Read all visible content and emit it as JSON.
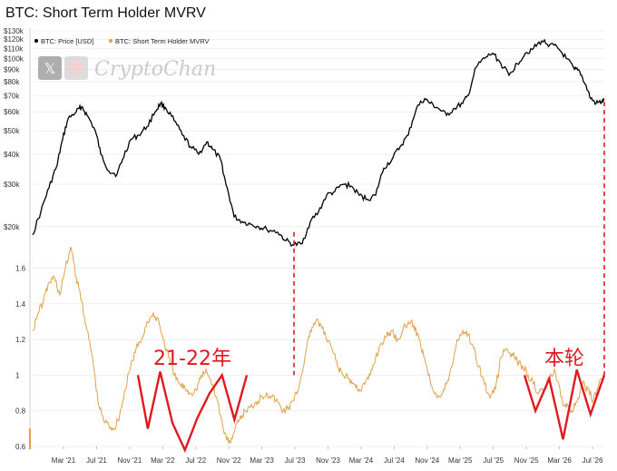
{
  "title": "BTC: Short Term Holder MVRV",
  "watermark": {
    "text": "CryptoChan"
  },
  "colors": {
    "price": "#000000",
    "mvrv": "#e0a04a",
    "annotation": "#e0191e",
    "grid": "#e6e6e6",
    "watermark": "#bdbdbd"
  },
  "chart_data": {
    "type": "line",
    "title": "BTC: Short Term Holder MVRV",
    "x_labels": [
      "Mar '21",
      "Jul '21",
      "Nov '21",
      "Mar '22",
      "Jul '22",
      "Nov '22",
      "Mar '23",
      "Jul '23",
      "Nov '23",
      "Mar '24",
      "Jul '24",
      "Nov '24",
      "Mar '25",
      "Jul '25",
      "Nov '25",
      "Mar '26",
      "Jul '26"
    ],
    "x_range": [
      0,
      21
    ],
    "legend": {
      "placement": "top-left",
      "entries": [
        "BTC: Price [USD]",
        "BTC: Short Term Holder MVRV"
      ]
    },
    "top_panel": {
      "scale": "log",
      "y_ticks": [
        "$20k",
        "$30k",
        "$40k",
        "$50k",
        "$60k",
        "$70k",
        "$80k",
        "$90k",
        "$100k",
        "$110k",
        "$120k",
        "$130k"
      ],
      "y_tick_values": [
        20000,
        30000,
        40000,
        50000,
        60000,
        70000,
        80000,
        90000,
        100000,
        110000,
        120000,
        130000
      ],
      "ylim": [
        18000,
        130000
      ],
      "series": [
        {
          "name": "BTC: Price [USD]",
          "points": [
            [
              0,
              18500
            ],
            [
              0.3,
              23000
            ],
            [
              0.6,
              29000
            ],
            [
              0.9,
              36000
            ],
            [
              1.1,
              46000
            ],
            [
              1.3,
              56000
            ],
            [
              1.6,
              60000
            ],
            [
              1.8,
              63000
            ],
            [
              2.0,
              58000
            ],
            [
              2.3,
              50000
            ],
            [
              2.5,
              40000
            ],
            [
              2.8,
              34000
            ],
            [
              3.1,
              33000
            ],
            [
              3.3,
              38000
            ],
            [
              3.6,
              46000
            ],
            [
              3.9,
              48000
            ],
            [
              4.2,
              52000
            ],
            [
              4.5,
              60000
            ],
            [
              4.7,
              65000
            ],
            [
              4.9,
              62000
            ],
            [
              5.2,
              55000
            ],
            [
              5.5,
              48000
            ],
            [
              5.8,
              43000
            ],
            [
              6.1,
              40000
            ],
            [
              6.4,
              45000
            ],
            [
              6.6,
              42000
            ],
            [
              6.9,
              38000
            ],
            [
              7.1,
              30000
            ],
            [
              7.4,
              22000
            ],
            [
              7.7,
              21000
            ],
            [
              8.0,
              20500
            ],
            [
              8.3,
              20000
            ],
            [
              8.6,
              19500
            ],
            [
              9.0,
              19000
            ],
            [
              9.3,
              17500
            ],
            [
              9.6,
              16800
            ],
            [
              9.9,
              17000
            ],
            [
              10.2,
              21000
            ],
            [
              10.5,
              23000
            ],
            [
              10.8,
              27000
            ],
            [
              11.1,
              28000
            ],
            [
              11.4,
              30000
            ],
            [
              11.7,
              29500
            ],
            [
              12.0,
              27000
            ],
            [
              12.3,
              26000
            ],
            [
              12.6,
              27000
            ],
            [
              12.9,
              35000
            ],
            [
              13.2,
              38000
            ],
            [
              13.5,
              43000
            ],
            [
              13.8,
              48000
            ],
            [
              14.1,
              62000
            ],
            [
              14.4,
              68000
            ],
            [
              14.6,
              65000
            ],
            [
              14.9,
              62000
            ],
            [
              15.2,
              58000
            ],
            [
              15.5,
              62000
            ],
            [
              15.8,
              65000
            ],
            [
              16.0,
              70000
            ],
            [
              16.3,
              92000
            ],
            [
              16.6,
              100000
            ],
            [
              16.9,
              105000
            ],
            [
              17.2,
              95000
            ],
            [
              17.5,
              85000
            ],
            [
              17.8,
              95000
            ],
            [
              18.1,
              105000
            ],
            [
              18.4,
              110000
            ],
            [
              18.7,
              118000
            ],
            [
              19.0,
              114000
            ],
            [
              19.3,
              110000
            ],
            [
              19.6,
              100000
            ],
            [
              19.9,
              90000
            ],
            [
              20.1,
              88000
            ],
            [
              20.3,
              78000
            ],
            [
              20.5,
              68000
            ],
            [
              20.7,
              65000
            ],
            [
              20.9,
              66000
            ],
            [
              21,
              67000
            ]
          ]
        }
      ]
    },
    "bottom_panel": {
      "y_ticks": [
        "0.6",
        "0.8",
        "1",
        "1.2",
        "1.4",
        "1.6"
      ],
      "y_tick_values": [
        0.6,
        0.8,
        1.0,
        1.2,
        1.4,
        1.6
      ],
      "ylim": [
        0.6,
        1.72
      ],
      "series": [
        {
          "name": "BTC: Short Term Holder MVRV",
          "points": [
            [
              0,
              1.25
            ],
            [
              0.2,
              1.35
            ],
            [
              0.4,
              1.42
            ],
            [
              0.6,
              1.52
            ],
            [
              0.8,
              1.55
            ],
            [
              1.0,
              1.45
            ],
            [
              1.2,
              1.6
            ],
            [
              1.4,
              1.72
            ],
            [
              1.6,
              1.55
            ],
            [
              1.8,
              1.42
            ],
            [
              2.0,
              1.25
            ],
            [
              2.2,
              1.1
            ],
            [
              2.4,
              0.85
            ],
            [
              2.6,
              0.75
            ],
            [
              2.8,
              0.72
            ],
            [
              3.0,
              0.7
            ],
            [
              3.2,
              0.78
            ],
            [
              3.4,
              0.92
            ],
            [
              3.6,
              1.05
            ],
            [
              3.8,
              1.15
            ],
            [
              4.0,
              1.2
            ],
            [
              4.2,
              1.3
            ],
            [
              4.4,
              1.33
            ],
            [
              4.6,
              1.32
            ],
            [
              4.8,
              1.2
            ],
            [
              5.0,
              1.1
            ],
            [
              5.2,
              1.0
            ],
            [
              5.4,
              0.95
            ],
            [
              5.6,
              0.93
            ],
            [
              5.8,
              0.9
            ],
            [
              6.0,
              0.92
            ],
            [
              6.2,
              1.0
            ],
            [
              6.4,
              1.02
            ],
            [
              6.6,
              0.95
            ],
            [
              6.8,
              0.85
            ],
            [
              7.0,
              0.7
            ],
            [
              7.2,
              0.62
            ],
            [
              7.4,
              0.68
            ],
            [
              7.6,
              0.75
            ],
            [
              7.8,
              0.8
            ],
            [
              8.0,
              0.82
            ],
            [
              8.2,
              0.85
            ],
            [
              8.4,
              0.88
            ],
            [
              8.6,
              0.9
            ],
            [
              8.8,
              0.88
            ],
            [
              9.0,
              0.85
            ],
            [
              9.2,
              0.8
            ],
            [
              9.4,
              0.82
            ],
            [
              9.6,
              0.86
            ],
            [
              9.8,
              0.95
            ],
            [
              10.0,
              1.1
            ],
            [
              10.2,
              1.25
            ],
            [
              10.4,
              1.3
            ],
            [
              10.6,
              1.28
            ],
            [
              10.8,
              1.2
            ],
            [
              11.0,
              1.15
            ],
            [
              11.2,
              1.05
            ],
            [
              11.4,
              1.0
            ],
            [
              11.6,
              0.98
            ],
            [
              11.8,
              0.95
            ],
            [
              12.0,
              0.92
            ],
            [
              12.2,
              0.95
            ],
            [
              12.4,
              1.0
            ],
            [
              12.6,
              1.1
            ],
            [
              12.8,
              1.18
            ],
            [
              13.0,
              1.22
            ],
            [
              13.2,
              1.25
            ],
            [
              13.4,
              1.2
            ],
            [
              13.6,
              1.25
            ],
            [
              13.8,
              1.3
            ],
            [
              14.0,
              1.28
            ],
            [
              14.2,
              1.2
            ],
            [
              14.4,
              1.1
            ],
            [
              14.6,
              0.97
            ],
            [
              14.8,
              0.9
            ],
            [
              15.0,
              0.88
            ],
            [
              15.2,
              0.95
            ],
            [
              15.4,
              1.05
            ],
            [
              15.6,
              1.2
            ],
            [
              15.8,
              1.25
            ],
            [
              16.0,
              1.23
            ],
            [
              16.2,
              1.15
            ],
            [
              16.4,
              1.05
            ],
            [
              16.6,
              0.95
            ],
            [
              16.8,
              0.87
            ],
            [
              17.0,
              0.92
            ],
            [
              17.2,
              1.1
            ],
            [
              17.4,
              1.15
            ],
            [
              17.6,
              1.12
            ],
            [
              17.8,
              1.08
            ],
            [
              18.0,
              1.05
            ],
            [
              18.2,
              1.0
            ],
            [
              18.4,
              0.95
            ],
            [
              18.6,
              0.9
            ],
            [
              18.8,
              0.92
            ],
            [
              19.0,
              0.98
            ],
            [
              19.2,
              1.02
            ],
            [
              19.4,
              0.88
            ],
            [
              19.6,
              0.82
            ],
            [
              19.8,
              0.8
            ],
            [
              20.0,
              0.85
            ],
            [
              20.2,
              0.95
            ],
            [
              20.4,
              0.92
            ],
            [
              20.6,
              0.86
            ],
            [
              20.8,
              0.95
            ],
            [
              21,
              1.0
            ]
          ]
        }
      ]
    },
    "overlays": [
      {
        "name": "21-22 cycle zigzag",
        "panel": "bottom",
        "points": [
          [
            5.15,
            1.0
          ],
          [
            5.55,
            0.7
          ],
          [
            6.05,
            1.02
          ],
          [
            6.55,
            0.73
          ],
          [
            7.05,
            0.58
          ],
          [
            7.55,
            0.76
          ],
          [
            8.05,
            0.9
          ],
          [
            8.55,
            1.0
          ],
          [
            9.05,
            0.75
          ],
          [
            9.55,
            1.0
          ]
        ]
      },
      {
        "name": "current cycle zigzag",
        "panel": "bottom",
        "points": [
          [
            18.65,
            1.0
          ],
          [
            19.05,
            0.8
          ],
          [
            19.55,
            0.98
          ],
          [
            20.05,
            0.64
          ],
          [
            20.55,
            1.03
          ],
          [
            21.05,
            0.78
          ],
          [
            21.55,
            1.0
          ]
        ]
      }
    ],
    "annotations": [
      {
        "text": "21-22年",
        "x": 7.0,
        "y": 1.1
      },
      {
        "text": "本轮",
        "x": 20.4,
        "y": 1.1
      }
    ],
    "dashed_lines": [
      {
        "x": 9.6,
        "from_price": 19000,
        "to_mvrv": 1.0
      },
      {
        "x": 21.0,
        "from_price": 66000,
        "to_mvrv": 1.0
      }
    ]
  }
}
